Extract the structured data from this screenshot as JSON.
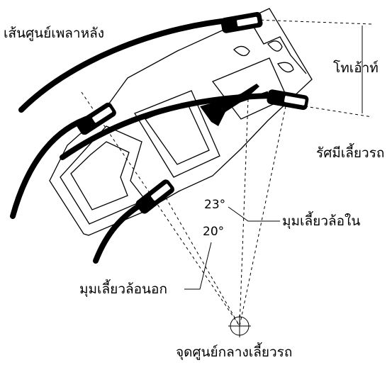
{
  "labels": {
    "rear_axle_centerline": "เส้นศูนย์เพลาหลัง",
    "overhang": "โทเอ้าท์",
    "turning_radius": "รัศมีเลี้ยวรถ",
    "inner_wheel_angle": "มุมเลี้ยวล้อใน",
    "outer_wheel_angle": "มุมเลี้ยวล้อนอก",
    "turning_center": "จุดศูนย์กลางเลี้ยวรถ"
  },
  "angles": {
    "inner": "23°",
    "outer": "20°"
  },
  "colors": {
    "ink": "#000000",
    "paper": "#ffffff"
  }
}
